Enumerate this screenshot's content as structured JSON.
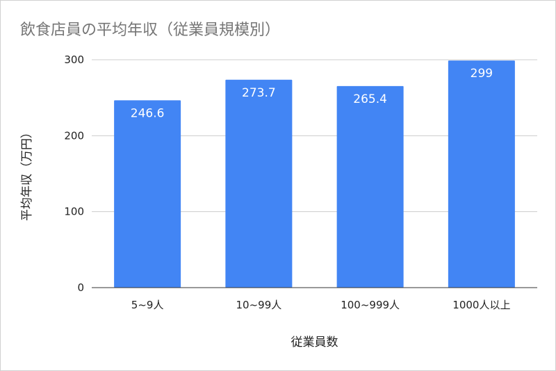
{
  "chart_data": {
    "type": "bar",
    "title": "飲食店員の平均年収（従業員規模別）",
    "xlabel": "従業員数",
    "ylabel": "平均年収（万円）",
    "categories": [
      "5~9人",
      "10~99人",
      "100~999人",
      "1000人以上"
    ],
    "series": [
      {
        "values": [
          246.6,
          273.7,
          265.4,
          299
        ]
      }
    ],
    "data_labels": [
      "246.6",
      "273.7",
      "265.4",
      "299"
    ],
    "ylim": [
      0,
      300
    ],
    "yticks": [
      0,
      100,
      200,
      300
    ],
    "ytick_labels": [
      "0",
      "100",
      "200",
      "300"
    ],
    "grid": true,
    "legend": "none",
    "bar_color": "#4285f4",
    "label_color": "#ffffff",
    "axis_color": "#333333",
    "grid_color": "#cccccc"
  }
}
